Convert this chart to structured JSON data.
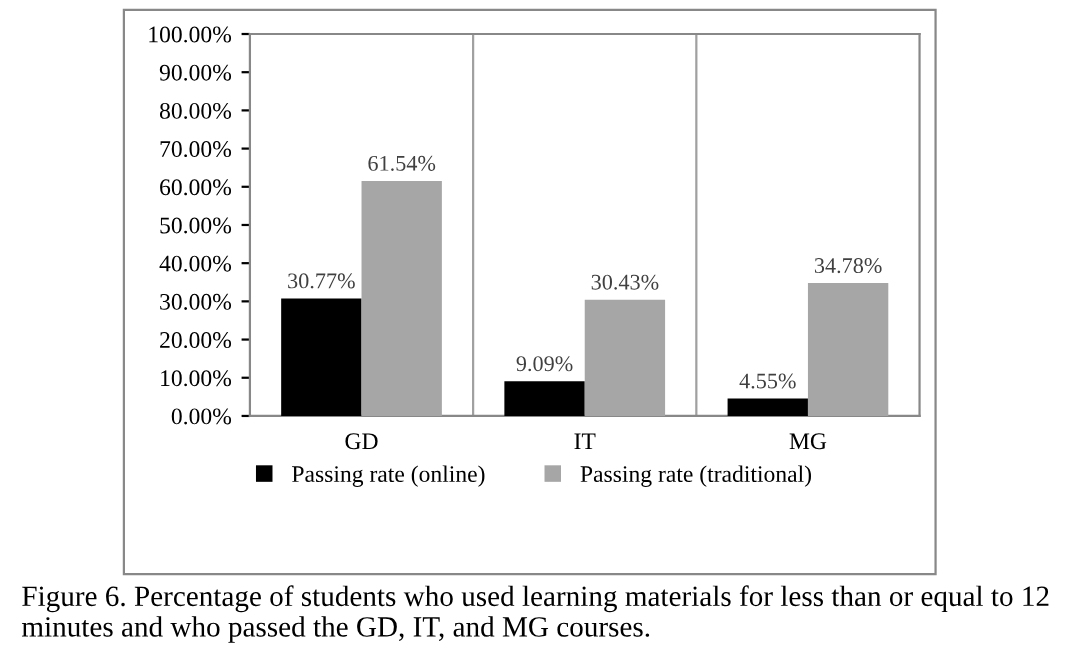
{
  "chart_data": {
    "type": "bar",
    "categories": [
      "GD",
      "IT",
      "MG"
    ],
    "series": [
      {
        "name": "Passing rate (online)",
        "color": "#000000",
        "values": [
          30.77,
          9.09,
          4.55
        ],
        "value_labels": [
          "30.77%",
          "9.09%",
          "4.55%"
        ]
      },
      {
        "name": "Passing rate (traditional)",
        "color": "#a6a6a6",
        "values": [
          61.54,
          30.43,
          34.78
        ],
        "value_labels": [
          "61.54%",
          "30.43%",
          "34.78%"
        ]
      }
    ],
    "ylim": [
      0,
      100
    ],
    "yticks": [
      {
        "value": 0,
        "label": "0.00%"
      },
      {
        "value": 10,
        "label": "10.00%"
      },
      {
        "value": 20,
        "label": "20.00%"
      },
      {
        "value": 30,
        "label": "30.00%"
      },
      {
        "value": 40,
        "label": "40.00%"
      },
      {
        "value": 50,
        "label": "50.00%"
      },
      {
        "value": 60,
        "label": "60.00%"
      },
      {
        "value": 70,
        "label": "70.00%"
      },
      {
        "value": 80,
        "label": "80.00%"
      },
      {
        "value": 90,
        "label": "90.00%"
      },
      {
        "value": 100,
        "label": "100.00%"
      }
    ],
    "grid": "x",
    "legend": "bottom",
    "annotations": [
      "Figure 6. Percentage of students who used learning materials for less than or equal to 12 minutes and who passed the GD, IT, and MG courses."
    ]
  }
}
